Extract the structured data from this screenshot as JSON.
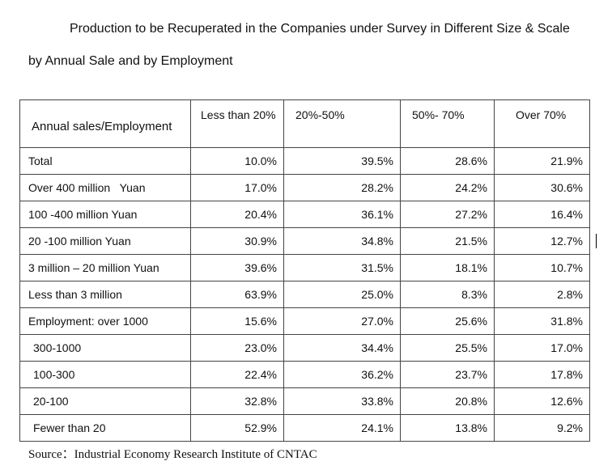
{
  "title_line1": "Production to be Recuperated in the Companies under Survey in Different Size & Scale",
  "title_line2": "by Annual Sale and by Employment",
  "headers": [
    "Annual sales/Employment",
    "Less than 20%",
    "20%-50%",
    "50%- 70%",
    "Over 70%"
  ],
  "rows": [
    {
      "label": "Total",
      "values": [
        "10.0%",
        "39.5%",
        "28.6%",
        "21.9%"
      ]
    },
    {
      "label": "Over 400 million   Yuan",
      "values": [
        "17.0%",
        "28.2%",
        "24.2%",
        "30.6%"
      ]
    },
    {
      "label": "100 -400 million Yuan",
      "values": [
        "20.4%",
        "36.1%",
        "27.2%",
        "16.4%"
      ]
    },
    {
      "label": "20 -100 million Yuan",
      "values": [
        "30.9%",
        "34.8%",
        "21.5%",
        "12.7%"
      ]
    },
    {
      "label": "3 million – 20 million Yuan",
      "values": [
        "39.6%",
        "31.5%",
        "18.1%",
        "10.7%"
      ]
    },
    {
      "label": "Less than 3 million",
      "values": [
        "63.9%",
        "25.0%",
        "8.3%",
        "2.8%"
      ]
    },
    {
      "label": "Employment: over 1000",
      "values": [
        "15.6%",
        "27.0%",
        "25.6%",
        "31.8%"
      ]
    },
    {
      "label": "300-1000",
      "values": [
        "23.0%",
        "34.4%",
        "25.5%",
        "17.0%"
      ]
    },
    {
      "label": "100-300",
      "values": [
        "22.4%",
        "36.2%",
        "23.7%",
        "17.8%"
      ]
    },
    {
      "label": "20-100",
      "values": [
        "32.8%",
        "33.8%",
        "20.8%",
        "12.6%"
      ]
    },
    {
      "label": "Fewer than 20",
      "values": [
        "52.9%",
        "24.1%",
        "13.8%",
        "9.2%"
      ]
    }
  ],
  "source": "Source：Industrial Economy Research Institute of CNTAC"
}
